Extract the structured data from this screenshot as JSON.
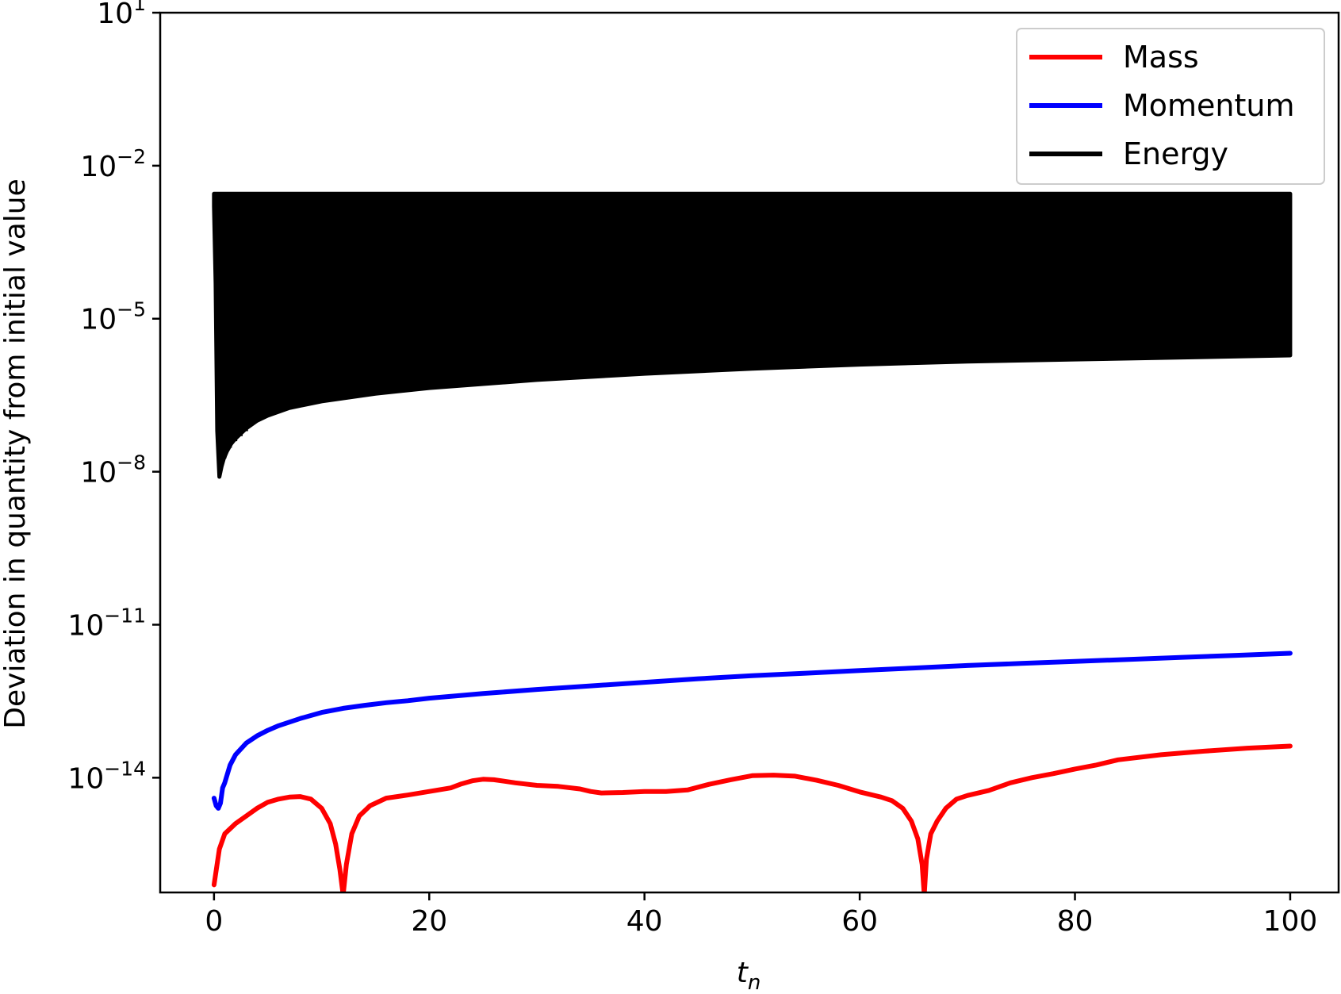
{
  "chart_data": {
    "type": "line",
    "xlabel": "t",
    "xlabel_subscript": "n",
    "ylabel": "Deviation in quantity from initial value",
    "x_ticks": [
      "0",
      "20",
      "40",
      "60",
      "80",
      "100"
    ],
    "y_ticks": [
      {
        "base": "10",
        "exp": "1"
      },
      {
        "base": "10",
        "exp": "−2"
      },
      {
        "base": "10",
        "exp": "−5"
      },
      {
        "base": "10",
        "exp": "−8"
      },
      {
        "base": "10",
        "exp": "−11"
      },
      {
        "base": "10",
        "exp": "−14"
      }
    ],
    "xlim": [
      -5,
      104.5
    ],
    "ylim_log10": [
      -16.25,
      1
    ],
    "y_scale": "log",
    "grid": false,
    "legend_position": "top-right",
    "series": [
      {
        "name": "Mass",
        "color": "#ff0000",
        "x": [
          0,
          0.5,
          1,
          2,
          3,
          4,
          5,
          6,
          7,
          8,
          9,
          10,
          10.8,
          11.3,
          11.7,
          12,
          12.3,
          12.8,
          13.5,
          14.5,
          16,
          18,
          20,
          22,
          23,
          24,
          25,
          26,
          27,
          28,
          30,
          32,
          34,
          35,
          36,
          38,
          40,
          42,
          44,
          46,
          48,
          50,
          52,
          54,
          56,
          58,
          60,
          62,
          63,
          64,
          64.8,
          65.4,
          65.8,
          66,
          66.2,
          66.6,
          67.2,
          68,
          69,
          70,
          72,
          74,
          76,
          78,
          80,
          82,
          84,
          88,
          92,
          96,
          100
        ],
        "log10_y": [
          -16.1,
          -15.4,
          -15.1,
          -14.9,
          -14.75,
          -14.6,
          -14.48,
          -14.42,
          -14.38,
          -14.37,
          -14.42,
          -14.6,
          -14.9,
          -15.3,
          -15.8,
          -16.3,
          -15.7,
          -15.1,
          -14.75,
          -14.55,
          -14.4,
          -14.34,
          -14.27,
          -14.2,
          -14.12,
          -14.06,
          -14.03,
          -14.04,
          -14.07,
          -14.1,
          -14.15,
          -14.17,
          -14.22,
          -14.27,
          -14.3,
          -14.29,
          -14.27,
          -14.27,
          -14.24,
          -14.13,
          -14.04,
          -13.96,
          -13.95,
          -13.97,
          -14.05,
          -14.15,
          -14.28,
          -14.38,
          -14.45,
          -14.6,
          -14.85,
          -15.2,
          -15.7,
          -16.3,
          -15.6,
          -15.1,
          -14.85,
          -14.6,
          -14.42,
          -14.35,
          -14.25,
          -14.1,
          -14.0,
          -13.92,
          -13.83,
          -13.75,
          -13.65,
          -13.55,
          -13.48,
          -13.42,
          -13.38
        ]
      },
      {
        "name": "Momentum",
        "color": "#0000ff",
        "x": [
          0,
          0.2,
          0.4,
          0.6,
          0.8,
          1,
          1.5,
          2,
          3,
          4,
          5,
          6,
          8,
          10,
          12,
          14,
          16,
          18,
          20,
          25,
          30,
          35,
          40,
          45,
          50,
          55,
          60,
          65,
          70,
          75,
          80,
          85,
          90,
          95,
          100
        ],
        "log10_y": [
          -14.4,
          -14.55,
          -14.6,
          -14.5,
          -14.2,
          -14.1,
          -13.75,
          -13.55,
          -13.32,
          -13.18,
          -13.07,
          -12.98,
          -12.84,
          -12.72,
          -12.64,
          -12.58,
          -12.53,
          -12.49,
          -12.44,
          -12.35,
          -12.27,
          -12.2,
          -12.13,
          -12.06,
          -12.0,
          -11.95,
          -11.9,
          -11.85,
          -11.8,
          -11.76,
          -11.72,
          -11.68,
          -11.64,
          -11.6,
          -11.56
        ]
      },
      {
        "name": "Energy",
        "color": "#000000",
        "upper_log10": -2.55,
        "lower_envelope_x": [
          0,
          0.15,
          0.3,
          0.5,
          0.7,
          0.9,
          1.2,
          1.6,
          2,
          3,
          4,
          5,
          7,
          10,
          15,
          20,
          30,
          40,
          50,
          60,
          70,
          80,
          90,
          100
        ],
        "lower_envelope_log10": [
          -2.8,
          -4.3,
          -7.2,
          -8.1,
          -7.9,
          -7.75,
          -7.6,
          -7.45,
          -7.35,
          -7.15,
          -7.0,
          -6.9,
          -6.75,
          -6.62,
          -6.47,
          -6.36,
          -6.2,
          -6.08,
          -5.98,
          -5.9,
          -5.84,
          -5.8,
          -5.76,
          -5.72
        ]
      }
    ]
  }
}
